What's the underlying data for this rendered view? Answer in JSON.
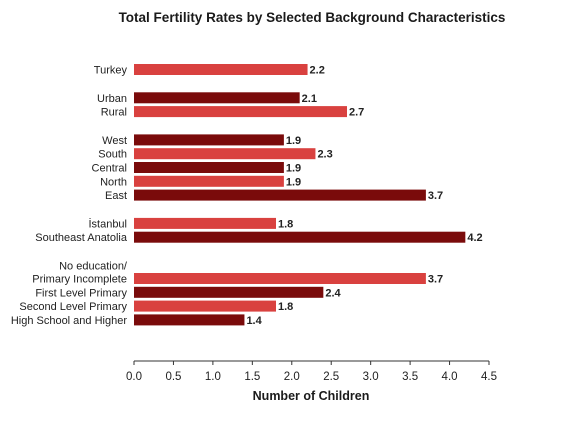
{
  "chart_data": {
    "type": "bar",
    "orientation": "horizontal",
    "title": "Total Fertility Rates by Selected Background Characteristics",
    "xlabel": "Number of Children",
    "ylabel": "",
    "xlim": [
      0,
      4.5
    ],
    "x_ticks": [
      "0.0",
      "0.5",
      "1.0",
      "1.5",
      "2.0",
      "2.5",
      "3.0",
      "3.5",
      "4.0",
      "4.5"
    ],
    "grid": false,
    "legend": "none",
    "colors": {
      "red": "#d9413f",
      "dark": "#7a0b0b"
    },
    "groups": [
      {
        "bars": [
          {
            "label": [
              "Turkey"
            ],
            "value": 2.2,
            "display": "2.2",
            "color": "red"
          }
        ]
      },
      {
        "bars": [
          {
            "label": [
              "Urban"
            ],
            "value": 2.1,
            "display": "2.1",
            "color": "dark"
          },
          {
            "label": [
              "Rural"
            ],
            "value": 2.7,
            "display": "2.7",
            "color": "red"
          }
        ]
      },
      {
        "bars": [
          {
            "label": [
              "West"
            ],
            "value": 1.9,
            "display": "1.9",
            "color": "dark"
          },
          {
            "label": [
              "South"
            ],
            "value": 2.3,
            "display": "2.3",
            "color": "red"
          },
          {
            "label": [
              "Central"
            ],
            "value": 1.9,
            "display": "1.9",
            "color": "dark"
          },
          {
            "label": [
              "North"
            ],
            "value": 1.9,
            "display": "1.9",
            "color": "red"
          },
          {
            "label": [
              "East"
            ],
            "value": 3.7,
            "display": "3.7",
            "color": "dark"
          }
        ]
      },
      {
        "bars": [
          {
            "label": [
              "İstanbul"
            ],
            "value": 1.8,
            "display": "1.8",
            "color": "red"
          },
          {
            "label": [
              "Southeast Anatolia"
            ],
            "value": 4.2,
            "display": "4.2",
            "color": "dark"
          }
        ]
      },
      {
        "bars": [
          {
            "label": [
              "No education/",
              "Primary Incomplete"
            ],
            "value": 3.7,
            "display": "3.7",
            "color": "red"
          },
          {
            "label": [
              "First Level Primary"
            ],
            "value": 2.4,
            "display": "2.4",
            "color": "dark"
          },
          {
            "label": [
              "Second Level Primary"
            ],
            "value": 1.8,
            "display": "1.8",
            "color": "red"
          },
          {
            "label": [
              "High School and Higher"
            ],
            "value": 1.4,
            "display": "1.4",
            "color": "dark"
          }
        ]
      }
    ]
  }
}
